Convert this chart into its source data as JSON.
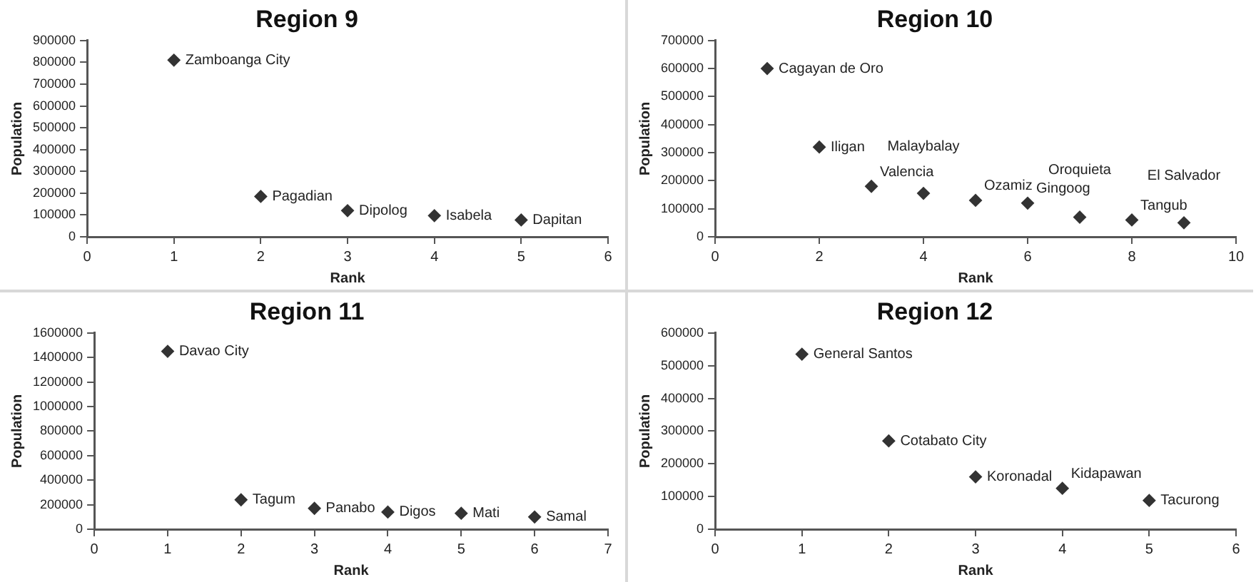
{
  "chart_data": [
    {
      "type": "scatter",
      "title": "Region 9",
      "xlabel": "Rank",
      "ylabel": "Population",
      "color": "#333333",
      "marker": "diamond",
      "grid": false,
      "x": [
        1,
        2,
        3,
        4,
        5
      ],
      "values": [
        810000,
        185000,
        120000,
        97000,
        77000
      ],
      "xlim": [
        0,
        6
      ],
      "xticks": [
        0,
        1,
        2,
        3,
        4,
        5,
        6
      ],
      "ylim": [
        0,
        900000
      ],
      "yticks": [
        0,
        100000,
        200000,
        300000,
        400000,
        500000,
        600000,
        700000,
        800000,
        900000
      ],
      "annotations": [
        {
          "text": "Zamboanga City",
          "x": 1,
          "y": 810000
        },
        {
          "text": "Pagadian",
          "x": 2,
          "y": 185000
        },
        {
          "text": "Dipolog",
          "x": 3,
          "y": 120000
        },
        {
          "text": "Isabela",
          "x": 4,
          "y": 97000
        },
        {
          "text": "Dapitan",
          "x": 5,
          "y": 77000
        }
      ]
    },
    {
      "type": "scatter",
      "title": "Region 10",
      "xlabel": "Rank",
      "ylabel": "Population",
      "color": "#333333",
      "marker": "diamond",
      "grid": false,
      "x": [
        1,
        2,
        3,
        4,
        5,
        6,
        7,
        8,
        9
      ],
      "values": [
        600000,
        320000,
        180000,
        155000,
        130000,
        120000,
        70000,
        60000,
        50000
      ],
      "xlim": [
        0,
        10
      ],
      "xticks": [
        0,
        2,
        4,
        6,
        8,
        10
      ],
      "ylim": [
        0,
        700000
      ],
      "yticks": [
        0,
        100000,
        200000,
        300000,
        400000,
        500000,
        600000,
        700000
      ],
      "annotations": [
        {
          "text": "Cagayan de Oro",
          "x": 1,
          "y": 600000
        },
        {
          "text": "Iligan",
          "x": 2,
          "y": 320000
        },
        {
          "text": "Valencia",
          "x": 3,
          "y": 180000
        },
        {
          "text": "Malaybalay",
          "x": 4,
          "y": 155000
        },
        {
          "text": "Ozamiz",
          "x": 5,
          "y": 130000
        },
        {
          "text": "Gingoog",
          "x": 6,
          "y": 120000
        },
        {
          "text": "Oroquieta",
          "x": 7,
          "y": 70000
        },
        {
          "text": "Tangub",
          "x": 8,
          "y": 60000
        },
        {
          "text": "El Salvador",
          "x": 9,
          "y": 50000
        }
      ]
    },
    {
      "type": "scatter",
      "title": "Region 11",
      "xlabel": "Rank",
      "ylabel": "Population",
      "color": "#333333",
      "marker": "diamond",
      "grid": false,
      "x": [
        1,
        2,
        3,
        4,
        5,
        6
      ],
      "values": [
        1450000,
        240000,
        170000,
        140000,
        130000,
        100000
      ],
      "xlim": [
        0,
        7
      ],
      "xticks": [
        0,
        1,
        2,
        3,
        4,
        5,
        6,
        7
      ],
      "ylim": [
        0,
        1600000
      ],
      "yticks": [
        0,
        200000,
        400000,
        600000,
        800000,
        1000000,
        1200000,
        1400000,
        1600000
      ],
      "annotations": [
        {
          "text": "Davao City",
          "x": 1,
          "y": 1450000
        },
        {
          "text": "Tagum",
          "x": 2,
          "y": 240000
        },
        {
          "text": "Panabo",
          "x": 3,
          "y": 170000
        },
        {
          "text": "Digos",
          "x": 4,
          "y": 140000
        },
        {
          "text": "Mati",
          "x": 5,
          "y": 130000
        },
        {
          "text": "Samal",
          "x": 6,
          "y": 100000
        }
      ]
    },
    {
      "type": "scatter",
      "title": "Region 12",
      "xlabel": "Rank",
      "ylabel": "Population",
      "color": "#333333",
      "marker": "diamond",
      "grid": false,
      "x": [
        1,
        2,
        3,
        4,
        5
      ],
      "values": [
        535000,
        270000,
        160000,
        125000,
        88000
      ],
      "xlim": [
        0,
        6
      ],
      "xticks": [
        0,
        1,
        2,
        3,
        4,
        5,
        6
      ],
      "ylim": [
        0,
        600000
      ],
      "yticks": [
        0,
        100000,
        200000,
        300000,
        400000,
        500000,
        600000
      ],
      "annotations": [
        {
          "text": "General Santos",
          "x": 1,
          "y": 535000
        },
        {
          "text": "Cotabato City",
          "x": 2,
          "y": 270000
        },
        {
          "text": "Koronadal",
          "x": 3,
          "y": 160000
        },
        {
          "text": "Kidapawan",
          "x": 4,
          "y": 125000
        },
        {
          "text": "Tacurong",
          "x": 5,
          "y": 88000
        }
      ]
    }
  ]
}
